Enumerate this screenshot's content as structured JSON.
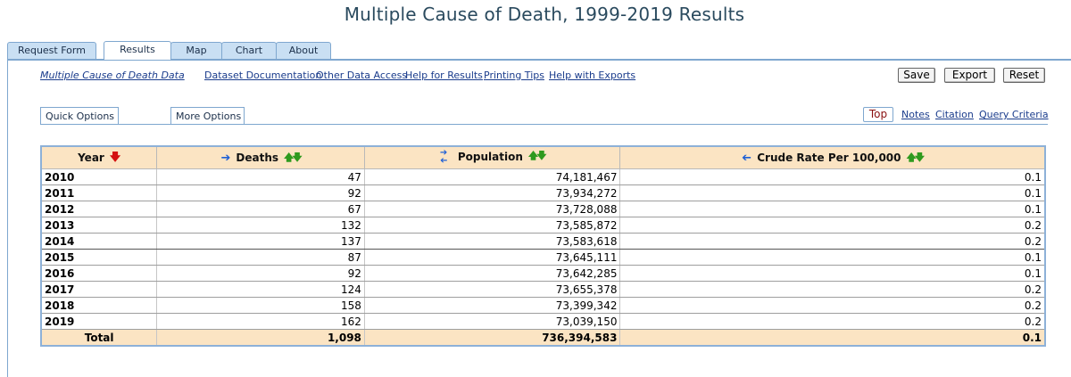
{
  "page": {
    "title": "Multiple Cause of Death, 1999-2019 Results"
  },
  "tabs": [
    {
      "label": "Request Form",
      "active": false
    },
    {
      "label": "Results",
      "active": true
    },
    {
      "label": "Map",
      "active": false
    },
    {
      "label": "Chart",
      "active": false
    },
    {
      "label": "About",
      "active": false
    }
  ],
  "links": {
    "dataset_name": "Multiple Cause of Death Data",
    "dataset_documentation": "Dataset Documentation",
    "other_data_access": "Other Data Access",
    "help_for_results": "Help for Results",
    "printing_tips": "Printing Tips",
    "help_with_exports": "Help with Exports"
  },
  "actions": {
    "save": "Save",
    "export": "Export",
    "reset": "Reset"
  },
  "options": {
    "quick": "Quick Options",
    "more": "More Options",
    "top": "Top",
    "notes": "Notes",
    "citation": "Citation",
    "query_criteria": "Query Criteria"
  },
  "table": {
    "headers": {
      "year": "Year",
      "deaths": "Deaths",
      "population": "Population",
      "crude_rate": "Crude Rate Per 100,000"
    },
    "rows": [
      {
        "year": "2010",
        "deaths": "47",
        "population": "74,181,467",
        "rate": "0.1"
      },
      {
        "year": "2011",
        "deaths": "92",
        "population": "73,934,272",
        "rate": "0.1"
      },
      {
        "year": "2012",
        "deaths": "67",
        "population": "73,728,088",
        "rate": "0.1"
      },
      {
        "year": "2013",
        "deaths": "132",
        "population": "73,585,872",
        "rate": "0.2"
      },
      {
        "year": "2014",
        "deaths": "137",
        "population": "73,583,618",
        "rate": "0.2"
      },
      {
        "year": "2015",
        "deaths": "87",
        "population": "73,645,111",
        "rate": "0.1"
      },
      {
        "year": "2016",
        "deaths": "92",
        "population": "73,642,285",
        "rate": "0.1"
      },
      {
        "year": "2017",
        "deaths": "124",
        "population": "73,655,378",
        "rate": "0.2"
      },
      {
        "year": "2018",
        "deaths": "158",
        "population": "73,399,342",
        "rate": "0.2"
      },
      {
        "year": "2019",
        "deaths": "162",
        "population": "73,039,150",
        "rate": "0.2"
      }
    ],
    "total": {
      "label": "Total",
      "deaths": "1,098",
      "population": "736,394,583",
      "rate": "0.1"
    }
  },
  "icons": {
    "year_sort": "red-down-arrow-icon",
    "deaths_move": "blue-right-arrow-icon",
    "population_move": "blue-swap-arrows-icon",
    "rate_move": "blue-left-arrow-icon",
    "sort": "green-up-down-arrows-icon"
  },
  "colors": {
    "header_bg": "#fbe4c3",
    "tab_bg": "#c9dff3",
    "border_blue": "#7fa7cf",
    "title": "#2a4a5e",
    "link": "#1a3c8c"
  }
}
